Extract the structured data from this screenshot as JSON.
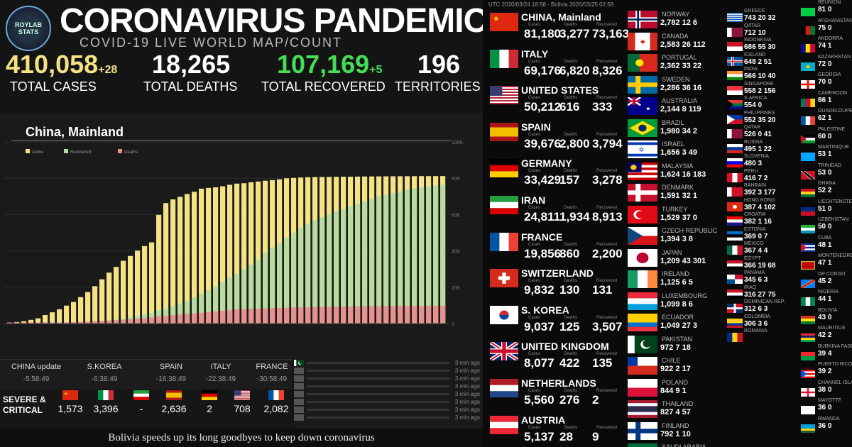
{
  "header": {
    "logo_text": "ROYLAB STATS",
    "title": "CORONAVIRUS PANDEMIC",
    "subtitle": "COVID-19 LIVE WORLD MAP/COUNT",
    "utc": "UTC 2020/03/24 18:58 · Bolivia 2020/03/25 02:58",
    "accent_cases": "#f4e285",
    "accent_recovered": "#44dd55"
  },
  "stats": {
    "cases": "410,058",
    "cases_inc": "+28",
    "cases_label": "TOTAL CASES",
    "deaths": "18,265",
    "deaths_label": "TOTAL DEATHS",
    "recovered": "107,169",
    "recovered_inc": "+5",
    "recovered_label": "TOTAL RECOVERED",
    "territories": "196",
    "territories_label": "TERRITORIES"
  },
  "chart_data": {
    "type": "bar",
    "title": "China, Mainland",
    "legend": [
      "Active",
      "Recovered",
      "Deaths"
    ],
    "legend_position": "top-left",
    "colors": {
      "active": "#f4e285",
      "recovered": "#b8dca0",
      "deaths": "#e89090"
    },
    "ylim": [
      0,
      100000
    ],
    "yticks": [
      "100K",
      "80K",
      "60K",
      "40K",
      "20K",
      "0"
    ],
    "totals": [
      550,
      830,
      1290,
      2020,
      2880,
      4690,
      6180,
      7870,
      9860,
      11900,
      14550,
      17330,
      20560,
      24360,
      28030,
      31160,
      34550,
      37200,
      40150,
      42640,
      44680,
      59830,
      66300,
      68340,
      69760,
      71330,
      72530,
      74280,
      74680,
      75000,
      75570,
      76390,
      77040,
      77260,
      77780,
      78190,
      78630,
      78960,
      79390,
      79970,
      80170,
      80380,
      80550,
      80650,
      80700,
      80740,
      80780,
      80820,
      80860,
      80900,
      80960,
      80990,
      81020,
      81050,
      81080,
      81100,
      81120,
      81140,
      81150,
      81160,
      81170,
      81180
    ],
    "recovered": [
      28,
      34,
      38,
      49,
      51,
      60,
      103,
      124,
      171,
      243,
      328,
      475,
      632,
      892,
      1153,
      1540,
      2050,
      2649,
      3281,
      3996,
      4740,
      5911,
      6723,
      8096,
      9419,
      10844,
      12552,
      14376,
      16155,
      18264,
      20659,
      22888,
      24734,
      27323,
      29745,
      32495,
      36117,
      39002,
      41625,
      44462,
      47204,
      49856,
      52045,
      53726,
      55404,
      57065,
      58600,
      59897,
      61475,
      62793,
      64111,
      65541,
      66911,
      67749,
      68679,
      69601,
      70420,
      71150,
      71740,
      72244,
      72703,
      73163
    ],
    "deaths": [
      17,
      25,
      41,
      56,
      80,
      106,
      132,
      170,
      213,
      259,
      304,
      361,
      425,
      490,
      562,
      632,
      717,
      805,
      904,
      1011,
      1111,
      1368,
      1381,
      1523,
      1665,
      1770,
      1868,
      2004,
      2118,
      2236,
      2345,
      2442,
      2592,
      2663,
      2715,
      2744,
      2788,
      2835,
      2870,
      2912,
      2943,
      2981,
      3013,
      3042,
      3070,
      3097,
      3119,
      3136,
      3158,
      3169,
      3176,
      3189,
      3199,
      3213,
      3226,
      3237,
      3245,
      3249,
      3253,
      3261,
      3270,
      3277
    ]
  },
  "updates": [
    {
      "label": "CHINA update",
      "time": "-5:58:49"
    },
    {
      "label": "S.KOREA",
      "time": "-6:38:49"
    },
    {
      "label": "SPAIN",
      "time": "-16:38:49"
    },
    {
      "label": "ITALY",
      "time": "-22:38:49"
    },
    {
      "label": "FRANCE",
      "time": "-30:58:49"
    }
  ],
  "severe": {
    "label_line1": "SEVERE &",
    "label_line2": "CRITICAL",
    "items": [
      {
        "flag": "china",
        "value": "1,573"
      },
      {
        "flag": "italy",
        "value": "3,396"
      },
      {
        "flag": "iran",
        "value": "-"
      },
      {
        "flag": "spain",
        "value": "2,636"
      },
      {
        "flag": "germany",
        "value": "2"
      },
      {
        "flag": "usa",
        "value": "708"
      },
      {
        "flag": "france",
        "value": "2,082"
      }
    ]
  },
  "feed": [
    {
      "flag": "pakistan",
      "time": "3 min ago"
    },
    {
      "flag": "",
      "time": "3 min ago"
    },
    {
      "flag": "",
      "time": "3 min ago"
    },
    {
      "flag": "",
      "time": "3 min ago"
    },
    {
      "flag": "",
      "time": "3 min ago"
    },
    {
      "flag": "",
      "time": "3 min ago"
    },
    {
      "flag": "",
      "time": "3 min ago"
    },
    {
      "flag": "",
      "time": "3 min ago"
    }
  ],
  "ticker": "Bolivia speeds up its long goodbyes to keep down coronavirus",
  "col1_labels": {
    "cases": "Cases",
    "deaths": "Deaths",
    "recovered": "Recovered"
  },
  "countries_main": [
    {
      "name": "CHINA, Mainland",
      "flag": "china",
      "cases": "81,180",
      "deaths": "3,277",
      "recovered": "73,163"
    },
    {
      "name": "ITALY",
      "flag": "italy",
      "cases": "69,176",
      "deaths": "6,820",
      "recovered": "8,326"
    },
    {
      "name": "UNITED STATES",
      "flag": "usa",
      "cases": "50,212",
      "deaths": "616",
      "recovered": "333"
    },
    {
      "name": "SPAIN",
      "flag": "spain",
      "cases": "39,676",
      "deaths": "2,800",
      "recovered": "3,794"
    },
    {
      "name": "GERMANY",
      "flag": "germany",
      "cases": "33,429",
      "deaths": "157",
      "recovered": "3,278"
    },
    {
      "name": "IRAN",
      "flag": "iran",
      "cases": "24,811",
      "deaths": "1,934",
      "recovered": "8,913"
    },
    {
      "name": "FRANCE",
      "flag": "france",
      "cases": "19,856",
      "deaths": "860",
      "recovered": "2,200"
    },
    {
      "name": "SWITZERLAND",
      "flag": "switzerland",
      "cases": "9,832",
      "deaths": "130",
      "recovered": "131"
    },
    {
      "name": "S. KOREA",
      "flag": "korea",
      "cases": "9,037",
      "deaths": "125",
      "recovered": "3,507"
    },
    {
      "name": "UNITED KINGDOM",
      "flag": "uk",
      "cases": "8,077",
      "deaths": "422",
      "recovered": "135"
    },
    {
      "name": "NETHERLANDS",
      "flag": "netherlands",
      "cases": "5,560",
      "deaths": "276",
      "recovered": "2"
    },
    {
      "name": "AUSTRIA",
      "flag": "austria",
      "cases": "5,137",
      "deaths": "28",
      "recovered": "9"
    }
  ],
  "countries_mid": [
    {
      "name": "NORWAY",
      "flag": "norway",
      "vals": "2,782 12 6"
    },
    {
      "name": "CANADA",
      "flag": "canada",
      "vals": "2,583 26 112"
    },
    {
      "name": "PORTUGAL",
      "flag": "portugal",
      "vals": "2,362 33 22"
    },
    {
      "name": "SWEDEN",
      "flag": "sweden",
      "vals": "2,286 36 16"
    },
    {
      "name": "AUSTRALIA",
      "flag": "australia",
      "vals": "2,144 8 119"
    },
    {
      "name": "BRAZIL",
      "flag": "brazil",
      "vals": "1,980 34 2"
    },
    {
      "name": "ISRAEL",
      "flag": "israel",
      "vals": "1,656 3 49"
    },
    {
      "name": "MALAYSIA",
      "flag": "malaysia",
      "vals": "1,624 16 183"
    },
    {
      "name": "DENMARK",
      "flag": "denmark",
      "vals": "1,591 32 1"
    },
    {
      "name": "TURKEY",
      "flag": "turkey",
      "vals": "1,529 37 0"
    },
    {
      "name": "CZECH REPUBLIC",
      "flag": "czech",
      "vals": "1,394 3 8"
    },
    {
      "name": "JAPAN",
      "flag": "japan",
      "vals": "1,209 43 301"
    },
    {
      "name": "IRELAND",
      "flag": "ireland",
      "vals": "1,125 6 5"
    },
    {
      "name": "LUXEMBOURG",
      "flag": "luxembourg",
      "vals": "1,099 8 6"
    },
    {
      "name": "ECUADOR",
      "flag": "ecuador",
      "vals": "1,049 27 3"
    },
    {
      "name": "PAKISTAN",
      "flag": "pakistan",
      "vals": "972 7 18"
    },
    {
      "name": "CHILE",
      "flag": "chile",
      "vals": "922 2 17"
    },
    {
      "name": "POLAND",
      "flag": "poland",
      "vals": "844 9 1"
    },
    {
      "name": "THAILAND",
      "flag": "thailand",
      "vals": "827 4 57"
    },
    {
      "name": "FINLAND",
      "flag": "finland",
      "vals": "792 1 10"
    },
    {
      "name": "SAUDI ARABIA",
      "flag": "saudi",
      "vals": ""
    }
  ],
  "countries_small": [
    {
      "name": "GREECE",
      "flag": "greece",
      "vals": "743 20 32"
    },
    {
      "name": "QATAR",
      "flag": "qatar",
      "vals": "712 10"
    },
    {
      "name": "INDONESIA",
      "flag": "indonesia",
      "vals": "686 55 30"
    },
    {
      "name": "ICELAND",
      "flag": "iceland",
      "vals": "648 2 51"
    },
    {
      "name": "INDIA",
      "flag": "india",
      "vals": "566 10 40"
    },
    {
      "name": "SINGAPORE",
      "flag": "singapore",
      "vals": "558 2 156"
    },
    {
      "name": "S.AFRICA",
      "flag": "safrica",
      "vals": "554 0"
    },
    {
      "name": "PHILIPPINES",
      "flag": "philippines",
      "vals": "552 35 20"
    },
    {
      "name": "QATAR",
      "flag": "qatar",
      "vals": "526 0 41"
    },
    {
      "name": "RUSSIA",
      "flag": "russia",
      "vals": "495 1 22"
    },
    {
      "name": "SLOVENIA",
      "flag": "slovenia",
      "vals": "480 3"
    },
    {
      "name": "PERU",
      "flag": "peru",
      "vals": "416 7 2"
    },
    {
      "name": "BAHRAIN",
      "flag": "bahrain",
      "vals": "392 3 177"
    },
    {
      "name": "HONG KONG",
      "flag": "hongkong",
      "vals": "387 4 102"
    },
    {
      "name": "CROATIA",
      "flag": "croatia",
      "vals": "382 1 16"
    },
    {
      "name": "ESTONIA",
      "flag": "estonia",
      "vals": "369 0 7"
    },
    {
      "name": "MEXICO",
      "flag": "mexico",
      "vals": "367 4 4"
    },
    {
      "name": "EGYPT",
      "flag": "egypt",
      "vals": "366 19 68"
    },
    {
      "name": "PANAMA",
      "flag": "panama",
      "vals": "345 6 3"
    },
    {
      "name": "IRAQ",
      "flag": "iraq",
      "vals": "316 27 75"
    },
    {
      "name": "DOMINICAN REP.",
      "flag": "dominican",
      "vals": "312 6 3"
    },
    {
      "name": "COLOMBIA",
      "flag": "colombia",
      "vals": "306 3 6"
    },
    {
      "name": "ROMANIA",
      "flag": "romania",
      "vals": ""
    }
  ],
  "countries_tiny": [
    {
      "name": "REUNION",
      "flag": "reunion",
      "vals": "81 0"
    },
    {
      "name": "AFGHANISTAN",
      "flag": "afghanistan",
      "vals": "75 0"
    },
    {
      "name": "ANDORRA",
      "flag": "andorra",
      "vals": "74 1"
    },
    {
      "name": "KAZAKHSTAN",
      "flag": "kazakhstan",
      "vals": "72 0"
    },
    {
      "name": "GEORGIA",
      "flag": "georgia",
      "vals": "70 0"
    },
    {
      "name": "CAMEROON",
      "flag": "cameroon",
      "vals": "66 1"
    },
    {
      "name": "GUADELOUPE",
      "flag": "guadeloupe",
      "vals": "62 1"
    },
    {
      "name": "PALESTINE",
      "flag": "palestine",
      "vals": "60 0"
    },
    {
      "name": "MARTINIQUE",
      "flag": "martinique",
      "vals": "53 1"
    },
    {
      "name": "TRINIDAD",
      "flag": "trinidad",
      "vals": "53 0"
    },
    {
      "name": "GHANA",
      "flag": "ghana",
      "vals": "52 2"
    },
    {
      "name": "LIECHTENSTEIN",
      "flag": "liechtenstein",
      "vals": "51 0"
    },
    {
      "name": "UZBEKISTAN",
      "flag": "uzbekistan",
      "vals": "50 0"
    },
    {
      "name": "CUBA",
      "flag": "cuba",
      "vals": "48 1"
    },
    {
      "name": "MONTENEGRO",
      "flag": "montenegro",
      "vals": "47 1"
    },
    {
      "name": "DR CONGO",
      "flag": "congo",
      "vals": "45 2"
    },
    {
      "name": "NIGERIA",
      "flag": "nigeria",
      "vals": "44 1"
    },
    {
      "name": "BOLIVIA",
      "flag": "bolivia",
      "vals": "43 0"
    },
    {
      "name": "MAURITIUS",
      "flag": "mauritius",
      "vals": "42 2"
    },
    {
      "name": "BURKINA FASO",
      "flag": "burkina",
      "vals": "39 4"
    },
    {
      "name": "PUERTO RICO",
      "flag": "puertorico",
      "vals": "39 2"
    },
    {
      "name": "CHANNEL ISLANDS",
      "flag": "channel",
      "vals": "38 0"
    },
    {
      "name": "MAYOTTE",
      "flag": "mayotte",
      "vals": "36 0"
    },
    {
      "name": "RWANDA",
      "flag": "rwanda",
      "vals": "36 0"
    }
  ]
}
